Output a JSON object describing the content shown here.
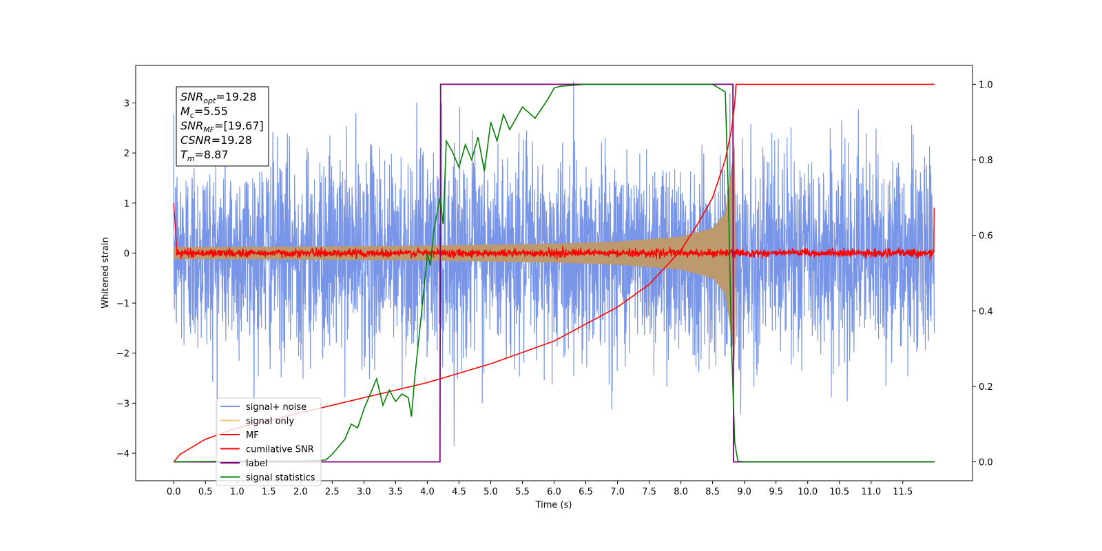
{
  "chart_data": {
    "type": "line",
    "xlabel": "Time (s)",
    "ylabel": "Whitened strain",
    "xlim": [
      -0.6,
      12.6
    ],
    "ylim": [
      -4.55,
      3.75
    ],
    "y2lim": [
      -0.05,
      1.05
    ],
    "grid": false,
    "legend_position": "bottom-left",
    "x_ticks": [
      "0.0",
      "0.5",
      "1.0",
      "1.5",
      "2.0",
      "2.5",
      "3.0",
      "3.5",
      "4.0",
      "4.5",
      "5.0",
      "5.5",
      "6.0",
      "6.5",
      "7.0",
      "7.5",
      "8.0",
      "8.5",
      "9.0",
      "9.5",
      "10.0",
      "10.5",
      "11.0",
      "11.5"
    ],
    "y_ticks": [
      "−4",
      "−3",
      "−2",
      "−1",
      "0",
      "1",
      "2",
      "3"
    ],
    "y2_ticks": [
      "0.0",
      "0.2",
      "0.4",
      "0.6",
      "0.8",
      "1.0"
    ],
    "annotation": {
      "lines": [
        {
          "base": "SNR",
          "sub": "opt",
          "value": "=19.28"
        },
        {
          "base": "M",
          "sub": "c",
          "value": "=5.55"
        },
        {
          "base": "SNR",
          "sub": "MF",
          "value": "=[19.67]"
        },
        {
          "base": "CSNR",
          "sub": "",
          "value": "=19.28"
        },
        {
          "base": "T",
          "sub": "m",
          "value": "=8.87"
        }
      ]
    },
    "series": [
      {
        "name": "signal+ noise",
        "color": "#7895e8",
        "axis": "left",
        "style": "noise",
        "noise_sigma": 1.0,
        "x_range": [
          0.0,
          12.0
        ]
      },
      {
        "name": "signal only",
        "color": "#f5c77a",
        "fill_color": "#bc9a6e",
        "axis": "left",
        "style": "chirp",
        "envelope": {
          "t": [
            0.0,
            2.0,
            4.0,
            6.0,
            7.0,
            8.0,
            8.5,
            8.7,
            8.85,
            8.87,
            12.0
          ],
          "amp": [
            0.12,
            0.13,
            0.15,
            0.19,
            0.23,
            0.33,
            0.5,
            0.8,
            2.2,
            0.0,
            0.0
          ]
        }
      },
      {
        "name": "MF",
        "color": "#ff0000",
        "axis": "left",
        "style": "mf",
        "x_range": [
          0.0,
          12.0
        ],
        "start_value": 1.0,
        "end_value": 0.9
      },
      {
        "name": "cumilative SNR",
        "color": "#ff0000",
        "axis": "right",
        "x": [
          0.0,
          0.1,
          0.5,
          1.0,
          2.0,
          3.0,
          4.0,
          5.0,
          6.0,
          7.0,
          7.5,
          8.0,
          8.3,
          8.5,
          8.7,
          8.8,
          8.85,
          8.87,
          12.0
        ],
        "y": [
          0.0,
          0.02,
          0.06,
          0.09,
          0.13,
          0.17,
          0.21,
          0.26,
          0.32,
          0.41,
          0.47,
          0.56,
          0.64,
          0.7,
          0.8,
          0.88,
          0.95,
          1.0,
          1.0
        ]
      },
      {
        "name": "label",
        "color": "#800080",
        "axis": "right",
        "x": [
          0.0,
          4.2,
          4.21,
          8.82,
          8.83,
          12.0
        ],
        "y": [
          0.0,
          0.0,
          1.0,
          1.0,
          0.0,
          0.0
        ]
      },
      {
        "name": "signal statistics",
        "color": "#008000",
        "axis": "right",
        "x": [
          0.0,
          1.0,
          2.0,
          2.4,
          2.5,
          2.7,
          2.8,
          2.9,
          3.0,
          3.1,
          3.2,
          3.3,
          3.4,
          3.5,
          3.6,
          3.7,
          3.75,
          3.8,
          3.9,
          4.0,
          4.05,
          4.1,
          4.2,
          4.25,
          4.3,
          4.4,
          4.5,
          4.6,
          4.7,
          4.8,
          4.9,
          5.0,
          5.1,
          5.2,
          5.3,
          5.5,
          5.7,
          5.9,
          6.0,
          6.1,
          6.5,
          7.0,
          7.5,
          8.0,
          8.5,
          8.7,
          8.75,
          8.8,
          8.85,
          8.9,
          9.0,
          12.0
        ],
        "y": [
          0.0,
          0.002,
          0.002,
          0.005,
          0.02,
          0.06,
          0.1,
          0.09,
          0.14,
          0.18,
          0.22,
          0.15,
          0.19,
          0.16,
          0.18,
          0.17,
          0.12,
          0.22,
          0.38,
          0.55,
          0.52,
          0.61,
          0.7,
          0.63,
          0.85,
          0.82,
          0.78,
          0.84,
          0.8,
          0.86,
          0.77,
          0.9,
          0.85,
          0.92,
          0.88,
          0.94,
          0.91,
          0.96,
          0.99,
          0.995,
          1.0,
          1.0,
          1.0,
          1.0,
          1.0,
          0.98,
          0.7,
          0.3,
          0.05,
          0.002,
          0.0,
          0.0
        ]
      }
    ]
  }
}
